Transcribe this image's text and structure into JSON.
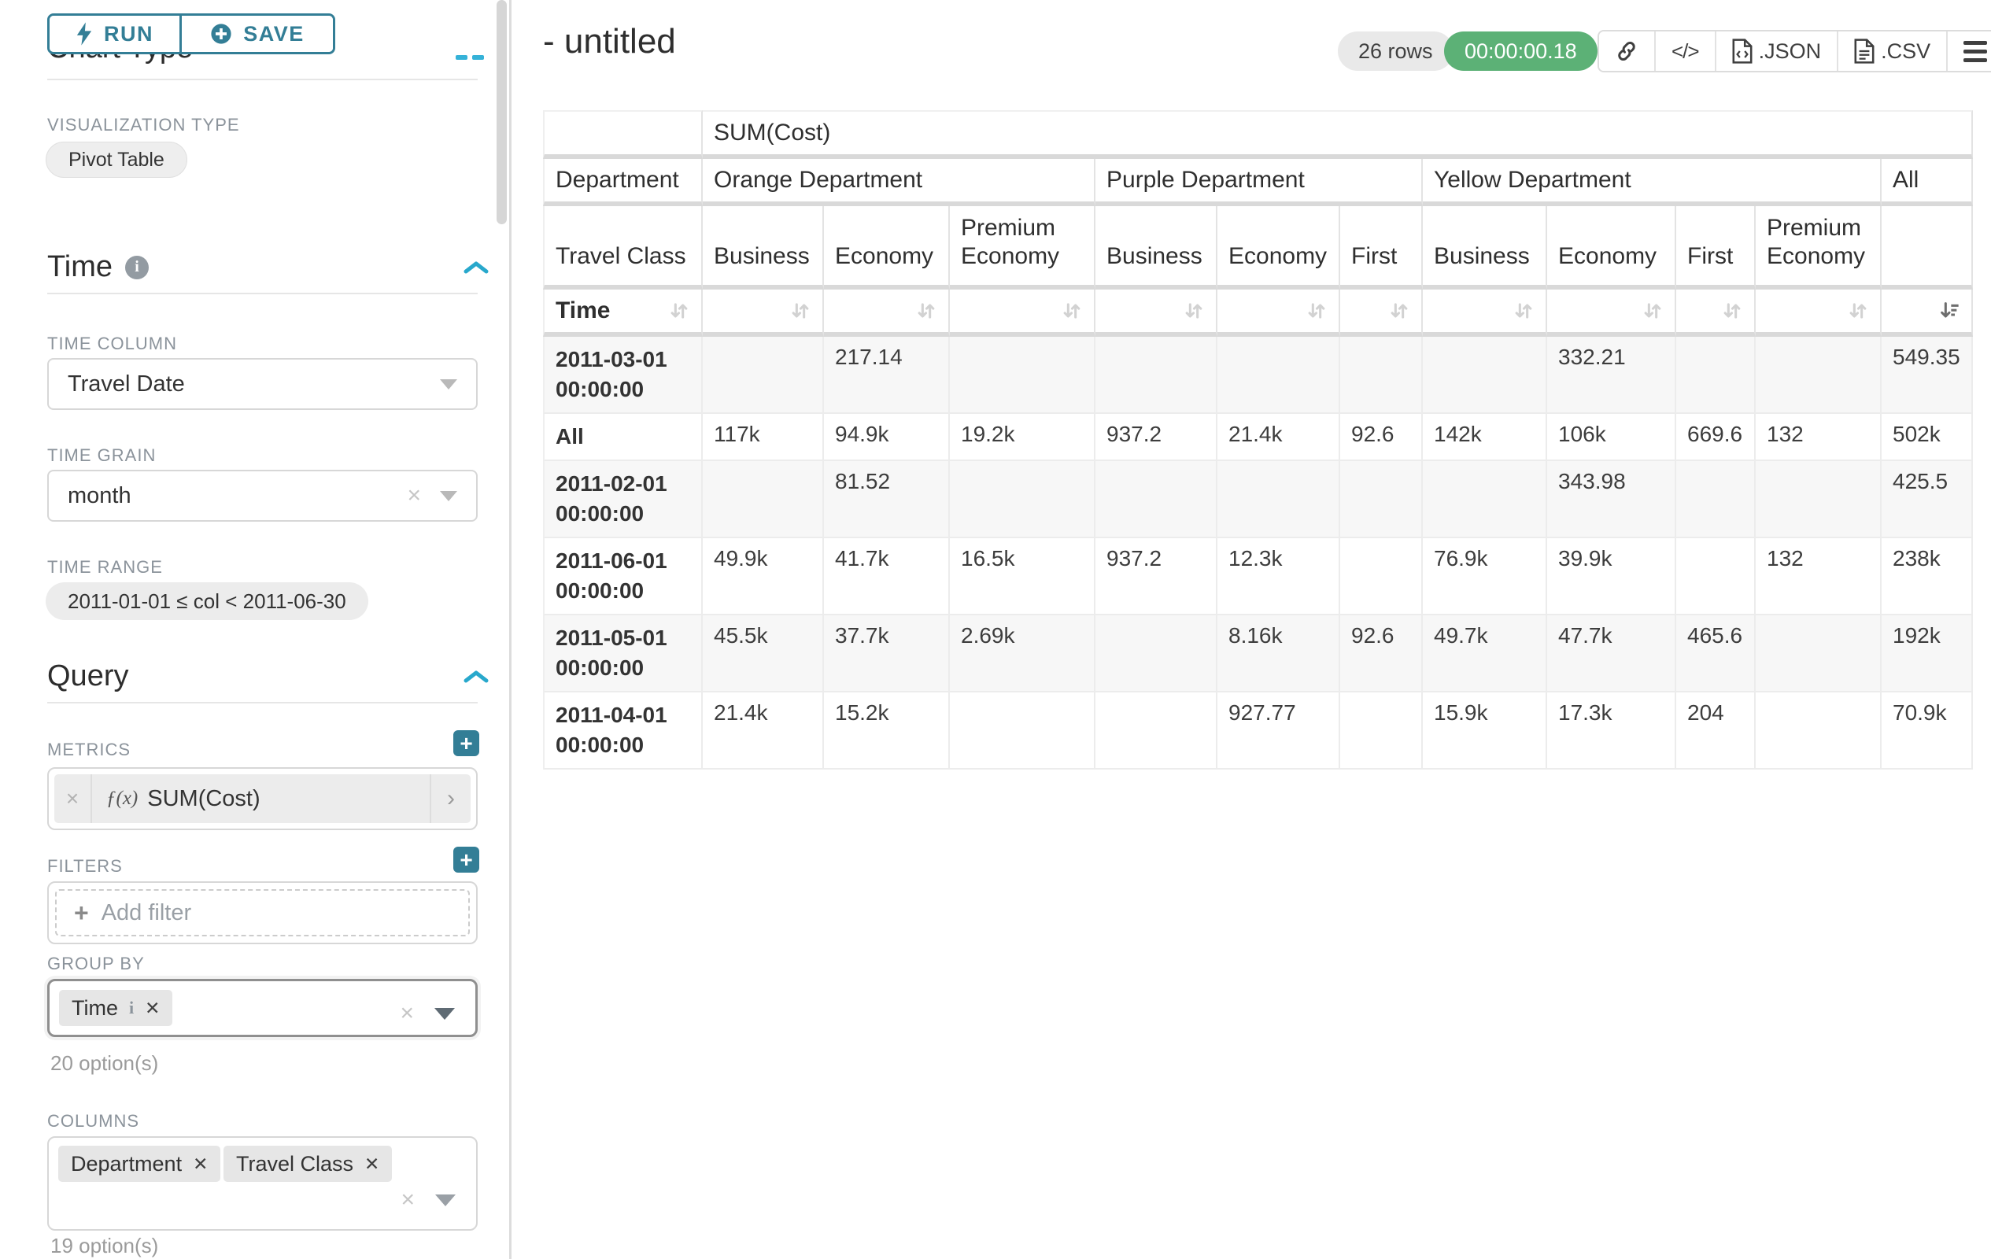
{
  "colors": {
    "accent_teal": "#337e96",
    "bright_teal": "#35b2d8",
    "timer_green": "#5cb176",
    "band_gray": "#d9d9d9",
    "tag_gray": "#e6e6e6"
  },
  "sidebar": {
    "run_button": "RUN",
    "save_button": "SAVE",
    "clipped_section_title": "Chart Type",
    "visualization_type": {
      "label": "VISUALIZATION TYPE",
      "value": "Pivot Table"
    },
    "time_section": {
      "title": "Time",
      "time_column": {
        "label": "TIME COLUMN",
        "value": "Travel Date"
      },
      "time_grain": {
        "label": "TIME GRAIN",
        "value": "month"
      },
      "time_range": {
        "label": "TIME RANGE",
        "value": "2011-01-01 ≤ col < 2011-06-30"
      }
    },
    "query_section": {
      "title": "Query",
      "metrics": {
        "label": "METRICS",
        "fx": "ƒ(x)",
        "value": "SUM(Cost)"
      },
      "filters": {
        "label": "FILTERS",
        "placeholder": "Add filter"
      },
      "group_by": {
        "label": "GROUP BY",
        "tag": "Time",
        "options_hint": "20 option(s)"
      },
      "columns": {
        "label": "COLUMNS",
        "tags": [
          "Department",
          "Travel Class"
        ],
        "options_hint": "19 option(s)"
      }
    }
  },
  "main": {
    "title": "- untitled",
    "rows_badge": "26 rows",
    "timer": "00:00:00.18",
    "export_json_label": ".JSON",
    "export_csv_label": ".CSV"
  },
  "pivot_table": {
    "metric_header": "SUM(Cost)",
    "row_header": "Department",
    "row_subheader": "Travel Class",
    "time_row_label": "Time",
    "column_groups": [
      {
        "label": "Orange Department",
        "columns": [
          "Business",
          "Economy",
          "Premium Economy"
        ]
      },
      {
        "label": "Purple Department",
        "columns": [
          "Business",
          "Economy",
          "First"
        ]
      },
      {
        "label": "Yellow Department",
        "columns": [
          "Business",
          "Economy",
          "First",
          "Premium Economy"
        ]
      },
      {
        "label": "All",
        "columns": [
          ""
        ]
      }
    ],
    "rows": [
      {
        "label": "2011-03-01 00:00:00",
        "values": [
          "",
          "217.14",
          "",
          "",
          "",
          "",
          "",
          "332.21",
          "",
          "",
          "549.35"
        ]
      },
      {
        "label": "All",
        "values": [
          "117k",
          "94.9k",
          "19.2k",
          "937.2",
          "21.4k",
          "92.6",
          "142k",
          "106k",
          "669.6",
          "132",
          "502k"
        ]
      },
      {
        "label": "2011-02-01 00:00:00",
        "values": [
          "",
          "81.52",
          "",
          "",
          "",
          "",
          "",
          "343.98",
          "",
          "",
          "425.5"
        ]
      },
      {
        "label": "2011-06-01 00:00:00",
        "values": [
          "49.9k",
          "41.7k",
          "16.5k",
          "937.2",
          "12.3k",
          "",
          "76.9k",
          "39.9k",
          "",
          "132",
          "238k"
        ]
      },
      {
        "label": "2011-05-01 00:00:00",
        "values": [
          "45.5k",
          "37.7k",
          "2.69k",
          "",
          "8.16k",
          "92.6",
          "49.7k",
          "47.7k",
          "465.6",
          "",
          "192k"
        ]
      },
      {
        "label": "2011-04-01 00:00:00",
        "values": [
          "21.4k",
          "15.2k",
          "",
          "",
          "927.77",
          "",
          "15.9k",
          "17.3k",
          "204",
          "",
          "70.9k"
        ]
      }
    ]
  }
}
